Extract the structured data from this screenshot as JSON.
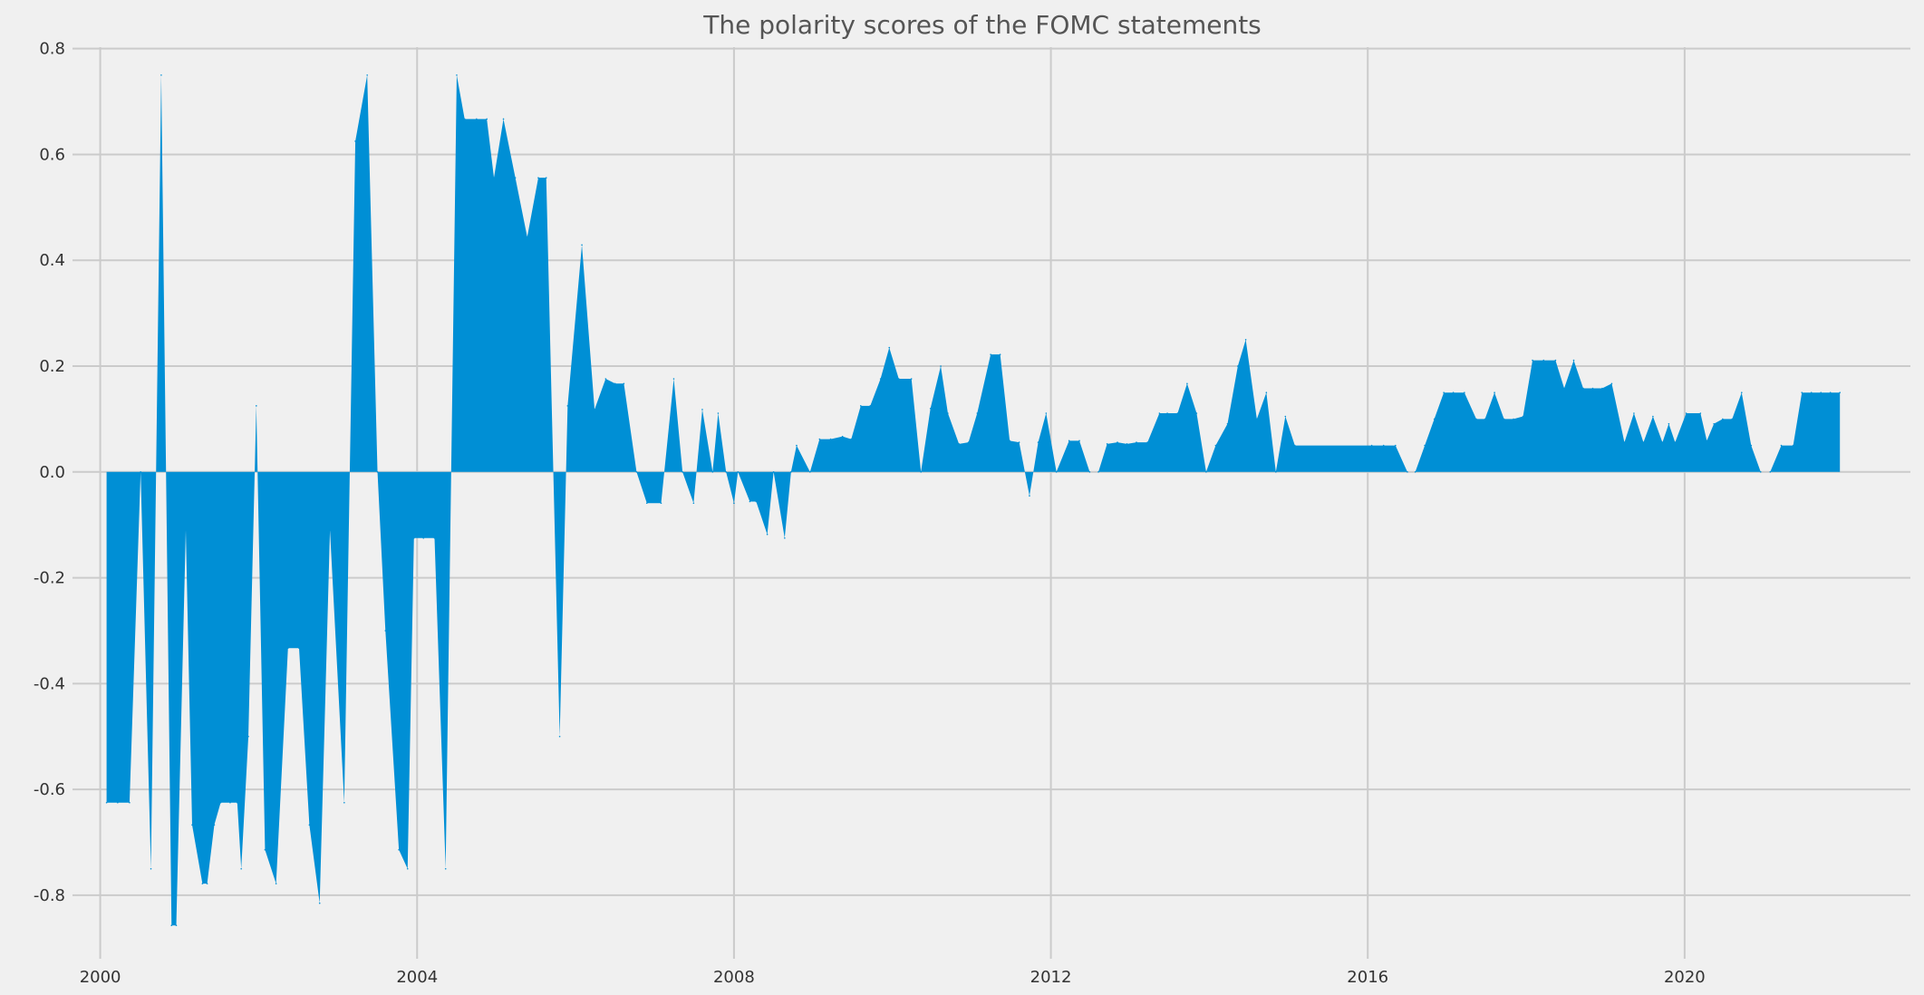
{
  "chart_data": {
    "type": "area",
    "title": "The polarity scores of the FOMC statements",
    "xlabel": "",
    "ylabel": "",
    "xlim": [
      1999.65,
      2022.85
    ],
    "ylim": [
      -0.92,
      0.82
    ],
    "x_ticks": [
      2000,
      2004,
      2008,
      2012,
      2016,
      2020
    ],
    "y_ticks": [
      -0.8,
      -0.6,
      -0.4,
      -0.2,
      0.0,
      0.2,
      0.4,
      0.6,
      0.8
    ],
    "grid": true,
    "fill_color": "#008fd5",
    "background_color": "#f0f0f0",
    "grid_color": "#cbcbcb",
    "x": [
      2000.08,
      2000.22,
      2000.37,
      2000.51,
      2000.64,
      2000.77,
      2000.9,
      2000.96,
      2001.08,
      2001.16,
      2001.29,
      2001.35,
      2001.44,
      2001.52,
      2001.64,
      2001.73,
      2001.78,
      2001.87,
      2001.97,
      2002.08,
      2002.22,
      2002.37,
      2002.51,
      2002.64,
      2002.77,
      2002.9,
      2003.08,
      2003.22,
      2003.37,
      2003.5,
      2003.6,
      2003.77,
      2003.88,
      2003.96,
      2004.08,
      2004.22,
      2004.36,
      2004.5,
      2004.6,
      2004.75,
      2004.88,
      2004.97,
      2005.09,
      2005.24,
      2005.39,
      2005.53,
      2005.63,
      2005.8,
      2005.9,
      2006.08,
      2006.24,
      2006.38,
      2006.5,
      2006.61,
      2006.77,
      2006.9,
      2007.08,
      2007.24,
      2007.35,
      2007.49,
      2007.6,
      2007.73,
      2007.8,
      2007.9,
      2008.0,
      2008.05,
      2008.2,
      2008.28,
      2008.42,
      2008.5,
      2008.64,
      2008.72,
      2008.79,
      2008.96,
      2009.08,
      2009.22,
      2009.37,
      2009.48,
      2009.6,
      2009.72,
      2009.85,
      2009.96,
      2010.08,
      2010.24,
      2010.36,
      2010.48,
      2010.61,
      2010.7,
      2010.84,
      2010.96,
      2011.07,
      2011.24,
      2011.36,
      2011.48,
      2011.6,
      2011.73,
      2011.84,
      2011.94,
      2012.07,
      2012.23,
      2012.36,
      2012.49,
      2012.6,
      2012.71,
      2012.84,
      2012.96,
      2013.08,
      2013.22,
      2013.37,
      2013.47,
      2013.6,
      2013.72,
      2013.84,
      2013.96,
      2014.08,
      2014.23,
      2014.36,
      2014.46,
      2014.6,
      2014.72,
      2014.84,
      2014.96,
      2015.08,
      2016.05,
      2016.2,
      2016.35,
      2016.5,
      2016.6,
      2016.72,
      2016.84,
      2016.96,
      2017.08,
      2017.22,
      2017.37,
      2017.48,
      2017.6,
      2017.72,
      2017.84,
      2017.96,
      2018.08,
      2018.22,
      2018.37,
      2018.48,
      2018.6,
      2018.72,
      2018.84,
      2018.96,
      2019.08,
      2019.24,
      2019.36,
      2019.48,
      2019.6,
      2019.72,
      2019.8,
      2019.88,
      2020.02,
      2020.2,
      2020.28,
      2020.37,
      2020.48,
      2020.6,
      2020.72,
      2020.84,
      2020.96,
      2021.08,
      2021.22,
      2021.37,
      2021.48,
      2021.6,
      2021.72,
      2021.84,
      2021.96
    ],
    "y": [
      -0.625,
      -0.625,
      -0.625,
      0.0,
      -0.75,
      0.75,
      -0.857,
      -0.857,
      -0.11,
      -0.667,
      -0.778,
      -0.778,
      -0.667,
      -0.625,
      -0.625,
      -0.625,
      -0.75,
      -0.5,
      0.125,
      -0.714,
      -0.778,
      -0.333,
      -0.333,
      -0.667,
      -0.815,
      -0.11,
      -0.625,
      0.625,
      0.75,
      0.0,
      -0.3,
      -0.714,
      -0.75,
      -0.125,
      -0.125,
      -0.125,
      -0.75,
      0.75,
      0.667,
      0.667,
      0.667,
      0.556,
      0.667,
      0.556,
      0.444,
      0.556,
      0.556,
      -0.5,
      0.125,
      0.429,
      0.118,
      0.176,
      0.167,
      0.167,
      0.0,
      -0.059,
      -0.059,
      0.176,
      0.0,
      -0.059,
      0.118,
      0.0,
      0.111,
      0.0,
      -0.059,
      0.0,
      -0.056,
      -0.056,
      -0.118,
      0.0,
      -0.125,
      0.0,
      0.05,
      0.0,
      0.062,
      0.062,
      0.067,
      0.062,
      0.125,
      0.125,
      0.176,
      0.235,
      0.176,
      0.176,
      0.0,
      0.12,
      0.2,
      0.111,
      0.053,
      0.056,
      0.111,
      0.222,
      0.222,
      0.059,
      0.056,
      -0.045,
      0.056,
      0.111,
      0.0,
      0.059,
      0.059,
      0.0,
      0.0,
      0.053,
      0.056,
      0.053,
      0.056,
      0.056,
      0.111,
      0.111,
      0.111,
      0.167,
      0.111,
      0.0,
      0.05,
      0.091,
      0.2,
      0.25,
      0.1,
      0.15,
      0.0,
      0.105,
      0.05,
      0.05,
      0.05,
      0.05,
      0.0,
      0.0,
      0.05,
      0.1,
      0.15,
      0.15,
      0.15,
      0.1,
      0.1,
      0.15,
      0.1,
      0.1,
      0.105,
      0.211,
      0.211,
      0.211,
      0.158,
      0.211,
      0.158,
      0.158,
      0.158,
      0.167,
      0.056,
      0.111,
      0.056,
      0.105,
      0.056,
      0.091,
      0.056,
      0.111,
      0.111,
      0.059,
      0.091,
      0.1,
      0.1,
      0.15,
      0.05,
      0.0,
      0.0,
      0.05,
      0.05,
      0.15,
      0.15,
      0.15,
      0.15,
      0.15
    ]
  }
}
